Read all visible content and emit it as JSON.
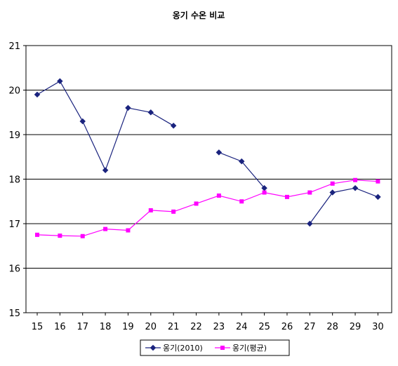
{
  "chart_data": {
    "type": "line",
    "title": "옹기 수온 비교",
    "xlabel": "",
    "ylabel": "",
    "x": [
      15,
      16,
      17,
      18,
      19,
      20,
      21,
      22,
      23,
      24,
      25,
      26,
      27,
      28,
      29,
      30
    ],
    "x_tick_labels": [
      "15",
      "16",
      "17",
      "18",
      "19",
      "20",
      "21",
      "22",
      "23",
      "24",
      "25",
      "26",
      "27",
      "28",
      "29",
      "30"
    ],
    "ylim": [
      15,
      21
    ],
    "y_ticks": [
      15,
      16,
      17,
      18,
      19,
      20,
      21
    ],
    "grid": true,
    "legend_position": "bottom",
    "series": [
      {
        "name": "옹기(2010)",
        "color": "#1a237e",
        "marker": "diamond",
        "values": [
          19.9,
          20.2,
          19.3,
          18.2,
          19.6,
          19.5,
          19.2,
          null,
          18.6,
          18.4,
          17.8,
          null,
          17.0,
          17.7,
          17.8,
          17.6
        ]
      },
      {
        "name": "옹기(평균)",
        "color": "#ff00ff",
        "marker": "square",
        "values": [
          16.75,
          16.73,
          16.72,
          16.88,
          16.85,
          17.3,
          17.27,
          17.45,
          17.63,
          17.5,
          17.7,
          17.6,
          17.7,
          17.9,
          17.98,
          17.95
        ]
      }
    ]
  }
}
